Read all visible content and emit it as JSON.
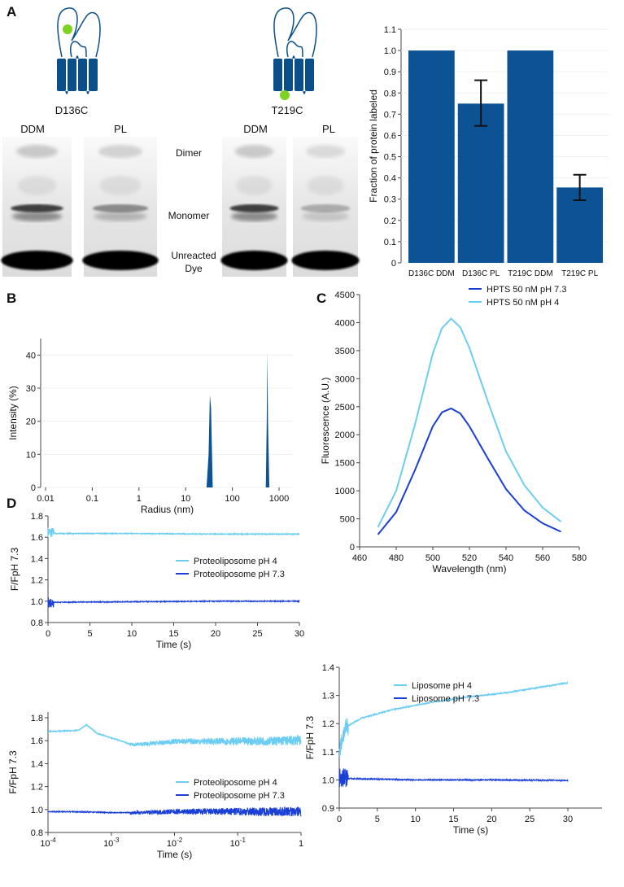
{
  "panels": {
    "a": "A",
    "b": "B",
    "c": "C",
    "d": "D"
  },
  "gel": {
    "constructs": [
      "D136C",
      "T219C"
    ],
    "lanes": [
      "DDM",
      "PL",
      "DDM",
      "PL"
    ],
    "band_labels": {
      "dimer": "Dimer",
      "monomer": "Monomer",
      "dye_line1": "Unreacted",
      "dye_line2": "Dye"
    },
    "colors": {
      "protein": "#0b4f8a",
      "label": "#7ed321"
    }
  },
  "chart_data": [
    {
      "id": "labeling",
      "type": "bar",
      "categories": [
        "D136C DDM",
        "D136C PL",
        "T219C DDM",
        "T219C PL"
      ],
      "values": [
        1.0,
        0.75,
        1.0,
        0.355
      ],
      "error_low": [
        null,
        0.645,
        null,
        0.295
      ],
      "error_high": [
        null,
        0.86,
        null,
        0.415
      ],
      "ylabel": "Fraction of protein labeled",
      "ylim": [
        0,
        1.1
      ],
      "yticks": [
        "0",
        "0.1",
        "0.2",
        "0.3",
        "0.4",
        "0.5",
        "0.6",
        "0.7",
        "0.8",
        "0.9",
        "1.0",
        "1.1"
      ],
      "color": "#0b5394",
      "grid": true
    },
    {
      "id": "dls",
      "type": "area",
      "xscale": "log",
      "xlabel": "Radius (nm)",
      "ylabel": "Intensity (%)",
      "xlim": [
        0.01,
        1000
      ],
      "ylim": [
        0,
        45
      ],
      "xticks": [
        "0.01",
        "0.1",
        "1",
        "10",
        "100",
        "1000"
      ],
      "yticks": [
        "0",
        "10",
        "20",
        "30",
        "40"
      ],
      "peaks": [
        {
          "x": [
            28,
            31,
            33,
            35,
            38
          ],
          "y": [
            0,
            10,
            28,
            24,
            0
          ]
        },
        {
          "x": [
            520,
            545,
            560,
            580,
            620
          ],
          "y": [
            0,
            20,
            41,
            20,
            0
          ]
        }
      ],
      "color": "#0b5394"
    },
    {
      "id": "hpts",
      "type": "line",
      "xlabel": "Wavelength (nm)",
      "ylabel": "Fluorescence (A.U.)",
      "xlim": [
        460,
        580
      ],
      "ylim": [
        0,
        4500
      ],
      "xticks": [
        "460",
        "480",
        "500",
        "520",
        "540",
        "560",
        "580"
      ],
      "yticks": [
        "0",
        "500",
        "1000",
        "1500",
        "2000",
        "2500",
        "3000",
        "3500",
        "4000",
        "4500"
      ],
      "legend": "top-right",
      "series": [
        {
          "name": "HPTS 50 nM pH 7.3",
          "color": "#1a3fd6",
          "x": [
            470,
            480,
            490,
            500,
            505,
            510,
            515,
            520,
            530,
            540,
            550,
            560,
            570
          ],
          "y": [
            220,
            620,
            1350,
            2150,
            2400,
            2470,
            2380,
            2150,
            1580,
            1030,
            650,
            420,
            270
          ]
        },
        {
          "name": "HPTS 50 nM pH 4",
          "color": "#6ccdf2",
          "x": [
            470,
            480,
            490,
            500,
            505,
            510,
            515,
            520,
            530,
            540,
            550,
            560,
            570
          ],
          "y": [
            350,
            1000,
            2150,
            3450,
            3900,
            4070,
            3920,
            3550,
            2600,
            1700,
            1100,
            700,
            450
          ]
        }
      ]
    },
    {
      "id": "proteoliposome-linear",
      "type": "line",
      "xlabel": "Time (s)",
      "ylabel": "F/FpH 7.3",
      "xlim": [
        0,
        30
      ],
      "ylim": [
        0.8,
        1.8
      ],
      "xticks": [
        "0",
        "5",
        "10",
        "15",
        "20",
        "25",
        "30"
      ],
      "yticks": [
        "0.8",
        "1.0",
        "1.2",
        "1.4",
        "1.6",
        "1.8"
      ],
      "legend": "center-right",
      "series": [
        {
          "name": "Proteoliposome pH 4",
          "color": "#6ccdf2",
          "x": [
            0,
            1,
            10,
            20,
            30
          ],
          "y": [
            1.65,
            1.635,
            1.635,
            1.63,
            1.63
          ]
        },
        {
          "name": "Proteoliposome pH 7.3",
          "color": "#1a3fd6",
          "x": [
            0,
            1,
            10,
            20,
            30
          ],
          "y": [
            0.99,
            0.99,
            0.995,
            1.0,
            1.0
          ]
        }
      ]
    },
    {
      "id": "proteoliposome-log",
      "type": "line",
      "xscale": "log",
      "xlabel": "Time (s)",
      "ylabel": "F/FpH 7.3",
      "xlim": [
        0.0001,
        1
      ],
      "ylim": [
        0.8,
        1.85
      ],
      "xticks": [
        "10-4",
        "10-3",
        "10-2",
        "10-1",
        "1"
      ],
      "yticks": [
        "0.8",
        "1.0",
        "1.2",
        "1.4",
        "1.6",
        "1.8"
      ],
      "legend": "bottom-right",
      "series": [
        {
          "name": "Proteoliposome pH 4",
          "color": "#6ccdf2",
          "x": [
            0.0001,
            0.0003,
            0.0004,
            0.0006,
            0.001,
            0.002,
            0.01,
            0.1,
            1
          ],
          "y": [
            1.72,
            1.73,
            1.78,
            1.7,
            1.66,
            1.6,
            1.63,
            1.63,
            1.64
          ]
        },
        {
          "name": "Proteoliposome pH 7.3",
          "color": "#1a3fd6",
          "x": [
            0.0001,
            0.001,
            0.01,
            0.1,
            1
          ],
          "y": [
            0.99,
            0.98,
            0.99,
            0.99,
            0.99
          ]
        }
      ]
    },
    {
      "id": "liposome",
      "type": "line",
      "xlabel": "Time (s)",
      "ylabel": "F/FpH 7.3",
      "xlim": [
        0,
        35
      ],
      "ylim": [
        0.9,
        1.4
      ],
      "xticks": [
        "0",
        "5",
        "10",
        "15",
        "20",
        "25",
        "30"
      ],
      "yticks": [
        "0.9",
        "1.0",
        "1.1",
        "1.2",
        "1.3",
        "1.4"
      ],
      "legend": "top-right",
      "series": [
        {
          "name": "Liposome pH 4",
          "color": "#6ccdf2",
          "x": [
            0,
            0.5,
            1,
            3,
            7,
            12,
            17,
            22,
            30
          ],
          "y": [
            1.1,
            1.16,
            1.19,
            1.22,
            1.25,
            1.275,
            1.295,
            1.31,
            1.345
          ]
        },
        {
          "name": "Liposome pH 7.3",
          "color": "#1a3fd6",
          "x": [
            0,
            1,
            10,
            20,
            30
          ],
          "y": [
            1.01,
            1.005,
            1.0,
            1.0,
            0.998
          ]
        }
      ]
    }
  ]
}
